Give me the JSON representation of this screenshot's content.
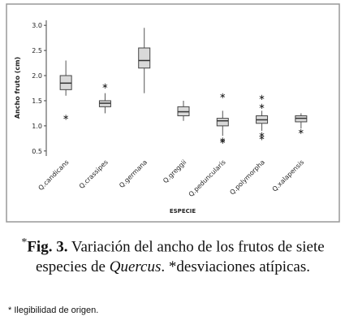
{
  "chart_data": {
    "type": "box",
    "ylabel": "Ancho fruto (cm)",
    "xlabel": "ESPECIE",
    "categories": [
      "Q.candicans",
      "Q.crassipes",
      "Q.germana",
      "Q.greggii",
      "Q.peduncularis",
      "Q.polymorpha",
      "Q.xalapensis"
    ],
    "boxes": [
      {
        "min": 1.6,
        "q1": 1.72,
        "median": 1.85,
        "q3": 2.0,
        "max": 2.3,
        "outliers": [
          1.2
        ]
      },
      {
        "min": 1.25,
        "q1": 1.38,
        "median": 1.45,
        "q3": 1.5,
        "max": 1.65,
        "outliers": [
          1.82
        ]
      },
      {
        "min": 1.65,
        "q1": 2.15,
        "median": 2.3,
        "q3": 2.55,
        "max": 2.95,
        "outliers": []
      },
      {
        "min": 1.1,
        "q1": 1.2,
        "median": 1.28,
        "q3": 1.38,
        "max": 1.5,
        "outliers": []
      },
      {
        "min": 0.8,
        "q1": 1.0,
        "median": 1.1,
        "q3": 1.15,
        "max": 1.3,
        "outliers": [
          1.63,
          0.75,
          0.72
        ]
      },
      {
        "min": 0.9,
        "q1": 1.05,
        "median": 1.12,
        "q3": 1.2,
        "max": 1.3,
        "outliers": [
          1.6,
          1.42,
          0.85,
          0.8
        ]
      },
      {
        "min": 0.95,
        "q1": 1.08,
        "median": 1.15,
        "q3": 1.2,
        "max": 1.25,
        "outliers": [
          0.92
        ]
      }
    ],
    "color": "#d9d9d9",
    "ylim": [
      0.4,
      3.1
    ],
    "yticks": [
      0.5,
      {
        "value": 1,
        "label": "1.0"
      },
      1.5,
      {
        "value": 2,
        "label": "2.0"
      },
      2.5,
      {
        "value": 3,
        "label": "3.0"
      }
    ]
  },
  "caption": {
    "marker": "*",
    "label": "Fig. 3.",
    "text1": "Variación del ancho de los frutos de siete especies de",
    "italic": "Quercus",
    "text2": ". *desviaciones atípicas."
  },
  "footnote": "* Ilegibilidad de origen."
}
